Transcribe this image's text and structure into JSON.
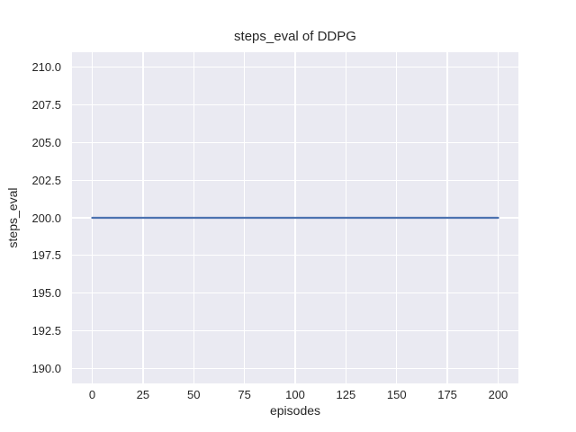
{
  "figure": {
    "background": "#ffffff",
    "text_color": "#262626"
  },
  "chart_data": {
    "type": "line",
    "title": "steps_eval of DDPG",
    "xlabel": "episodes",
    "ylabel": "steps_eval",
    "series": [
      {
        "name": "steps_eval",
        "color": "#4C72B0",
        "x": [
          0,
          200
        ],
        "y": [
          200,
          200
        ]
      }
    ],
    "xlim": [
      -10,
      210
    ],
    "ylim": [
      189,
      211
    ],
    "xticks": [
      0,
      25,
      50,
      75,
      100,
      125,
      150,
      175,
      200
    ],
    "xtick_labels": [
      "0",
      "25",
      "50",
      "75",
      "100",
      "125",
      "150",
      "175",
      "200"
    ],
    "yticks": [
      190.0,
      192.5,
      195.0,
      197.5,
      200.0,
      202.5,
      205.0,
      207.5,
      210.0
    ],
    "ytick_labels": [
      "190.0",
      "192.5",
      "195.0",
      "197.5",
      "200.0",
      "202.5",
      "205.0",
      "207.5",
      "210.0"
    ],
    "grid": true,
    "legend": "none",
    "plot_background": "#EAEAF2",
    "grid_color": "#FFFFFF"
  }
}
